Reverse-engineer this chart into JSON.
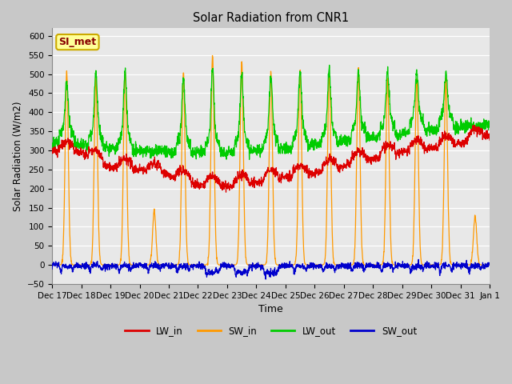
{
  "title": "Solar Radiation from CNR1",
  "xlabel": "Time",
  "ylabel": "Solar Radiation (W/m2)",
  "ylim": [
    -50,
    620
  ],
  "yticks": [
    -50,
    0,
    50,
    100,
    150,
    200,
    250,
    300,
    350,
    400,
    450,
    500,
    550,
    600
  ],
  "line_colors": {
    "LW_in": "#dd0000",
    "SW_in": "#ff9900",
    "LW_out": "#00cc00",
    "SW_out": "#0000cc"
  },
  "annotation_text": "SI_met",
  "annotation_bg": "#ffff99",
  "annotation_border": "#ccaa00",
  "annotation_text_color": "#880000",
  "date_labels": [
    "Dec 17",
    "Dec 18",
    "Dec 19",
    "Dec 20",
    "Dec 21",
    "Dec 22",
    "Dec 23",
    "Dec 24",
    "Dec 25",
    "Dec 26",
    "Dec 27",
    "Dec 28",
    "Dec 29",
    "Dec 30",
    "Dec 31",
    "Jan 1"
  ]
}
